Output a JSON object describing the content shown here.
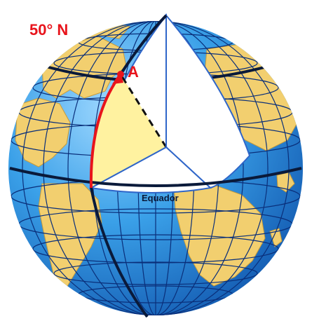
{
  "labels": {
    "latitude": "50° N",
    "point": "A",
    "equator": "Equador"
  },
  "colors": {
    "ocean_light": "#9fd8ff",
    "ocean_mid": "#3aa0e8",
    "ocean_dark": "#0d4fa8",
    "land": "#f2cf6f",
    "land_edge": "#c79b3a",
    "grid": "#0a2f7a",
    "cutaway_face": "#ffffff",
    "cutaway_edge": "#2f66c9",
    "angle_fill": "#fff2a0",
    "highlight": "#e8141c",
    "label_red": "#e8141c"
  },
  "icons": {
    "globe": "globe-diagram"
  }
}
